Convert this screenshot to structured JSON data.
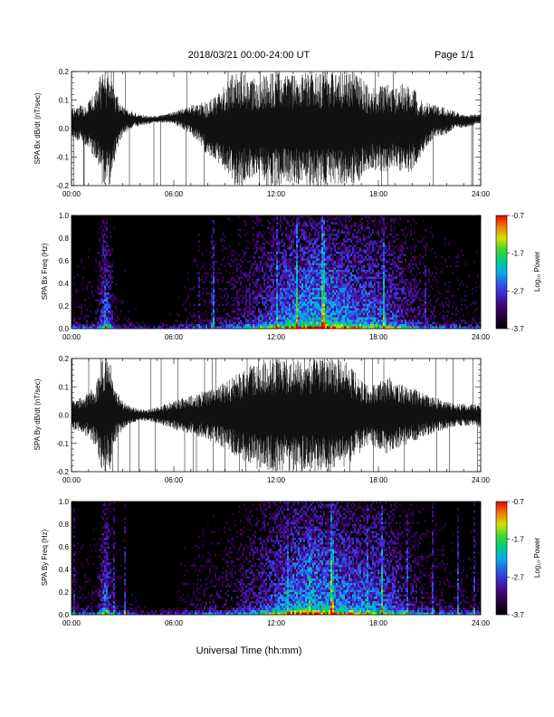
{
  "header": {
    "title": "2018/03/21   00:00-24:00 UT",
    "page": "Page 1/1"
  },
  "chart_data": [
    {
      "type": "line",
      "ylabel": "SPA Bx dB/dt (nT/sec)",
      "xlim": [
        0,
        24
      ],
      "ylim": [
        -0.2,
        0.2
      ],
      "xticks": [
        "00:00",
        "06:00",
        "12:00",
        "18:00",
        "24:00"
      ],
      "yticks": [
        "-0.2",
        "-0.1",
        "0.0",
        "0.1",
        "0.2"
      ],
      "envelope": {
        "x": [
          0,
          0.5,
          1,
          1.5,
          1.75,
          2,
          2.25,
          2.5,
          3,
          3.5,
          4,
          4.5,
          5,
          5.5,
          6,
          6.5,
          7,
          7.5,
          8,
          8.5,
          9,
          9.5,
          10,
          10.5,
          11,
          11.5,
          12,
          12.5,
          13,
          13.5,
          14,
          14.5,
          15,
          15.5,
          16,
          16.5,
          17,
          17.5,
          18,
          18.5,
          19,
          19.5,
          20,
          20.5,
          21,
          21.5,
          22,
          22.5,
          23,
          23.5,
          24
        ],
        "upper": [
          0.07,
          0.08,
          0.1,
          0.14,
          0.2,
          0.2,
          0.2,
          0.14,
          0.08,
          0.06,
          0.05,
          0.045,
          0.045,
          0.05,
          0.06,
          0.07,
          0.08,
          0.09,
          0.1,
          0.12,
          0.15,
          0.2,
          0.2,
          0.18,
          0.17,
          0.2,
          0.2,
          0.19,
          0.2,
          0.2,
          0.2,
          0.2,
          0.2,
          0.2,
          0.2,
          0.2,
          0.18,
          0.14,
          0.15,
          0.16,
          0.14,
          0.16,
          0.15,
          0.1,
          0.09,
          0.08,
          0.07,
          0.06,
          0.05,
          0.05,
          0.05
        ],
        "lower": [
          -0.03,
          -0.05,
          -0.08,
          -0.12,
          -0.2,
          -0.2,
          -0.2,
          -0.12,
          -0.02,
          0.0,
          0.01,
          0.015,
          0.02,
          0.02,
          0.015,
          0.0,
          -0.02,
          -0.05,
          -0.1,
          -0.12,
          -0.15,
          -0.2,
          -0.2,
          -0.18,
          -0.17,
          -0.2,
          -0.2,
          -0.19,
          -0.2,
          -0.2,
          -0.2,
          -0.2,
          -0.2,
          -0.2,
          -0.2,
          -0.2,
          -0.18,
          -0.14,
          -0.15,
          -0.16,
          -0.14,
          -0.16,
          -0.15,
          -0.1,
          -0.05,
          -0.03,
          -0.02,
          0.0,
          0.0,
          0.01,
          0.02
        ]
      }
    },
    {
      "type": "heatmap",
      "ylabel": "SPA Bx Freq (Hz)",
      "xlim": [
        0,
        24
      ],
      "ylim": [
        0,
        1.0
      ],
      "xticks": [
        "00:00",
        "06:00",
        "12:00",
        "18:00",
        "24:00"
      ],
      "yticks": [
        "0.0",
        "0.2",
        "0.4",
        "0.6",
        "0.8",
        "1.0"
      ],
      "colorbar": {
        "label": "Log₁₀ Power",
        "ticks": [
          "-0.7",
          "-1.7",
          "-2.7",
          "-3.7"
        ],
        "range": [
          -3.7,
          -0.7
        ]
      }
    },
    {
      "type": "line",
      "ylabel": "SPA By dB/dt (nT/sec)",
      "xlim": [
        0,
        24
      ],
      "ylim": [
        -0.2,
        0.2
      ],
      "xticks": [
        "00:00",
        "06:00",
        "12:00",
        "18:00",
        "24:00"
      ],
      "yticks": [
        "-0.2",
        "-0.1",
        "0.0",
        "0.1",
        "0.2"
      ],
      "envelope": {
        "x": [
          0,
          0.5,
          1,
          1.5,
          1.75,
          2,
          2.25,
          2.5,
          3,
          3.5,
          4,
          4.5,
          5,
          5.5,
          6,
          6.5,
          7,
          7.5,
          8,
          8.5,
          9,
          9.5,
          10,
          10.5,
          11,
          11.5,
          12,
          12.5,
          13,
          13.5,
          14,
          14.5,
          15,
          15.5,
          16,
          16.5,
          17,
          17.5,
          18,
          18.5,
          19,
          19.5,
          20,
          20.5,
          21,
          21.5,
          22,
          22.5,
          23,
          23.5,
          24
        ],
        "upper": [
          0.05,
          0.06,
          0.08,
          0.12,
          0.2,
          0.2,
          0.2,
          0.1,
          0.05,
          0.03,
          0.02,
          0.02,
          0.03,
          0.04,
          0.05,
          0.06,
          0.07,
          0.08,
          0.09,
          0.1,
          0.12,
          0.14,
          0.16,
          0.18,
          0.2,
          0.2,
          0.2,
          0.2,
          0.2,
          0.2,
          0.2,
          0.2,
          0.2,
          0.2,
          0.2,
          0.16,
          0.13,
          0.1,
          0.12,
          0.14,
          0.12,
          0.11,
          0.1,
          0.08,
          0.07,
          0.06,
          0.05,
          0.04,
          0.04,
          0.04,
          0.04
        ],
        "lower": [
          -0.05,
          -0.06,
          -0.08,
          -0.12,
          -0.2,
          -0.2,
          -0.2,
          -0.1,
          -0.05,
          -0.03,
          -0.02,
          -0.02,
          -0.03,
          -0.04,
          -0.05,
          -0.06,
          -0.07,
          -0.08,
          -0.09,
          -0.1,
          -0.12,
          -0.14,
          -0.16,
          -0.18,
          -0.2,
          -0.2,
          -0.2,
          -0.2,
          -0.2,
          -0.2,
          -0.2,
          -0.2,
          -0.2,
          -0.2,
          -0.2,
          -0.16,
          -0.13,
          -0.1,
          -0.12,
          -0.14,
          -0.12,
          -0.11,
          -0.1,
          -0.08,
          -0.07,
          -0.06,
          -0.05,
          -0.04,
          -0.04,
          -0.04,
          -0.04
        ]
      }
    },
    {
      "type": "heatmap",
      "ylabel": "SPA By Freq (Hz)",
      "xlim": [
        0,
        24
      ],
      "ylim": [
        0,
        1.0
      ],
      "xticks": [
        "00:00",
        "06:00",
        "12:00",
        "18:00",
        "24:00"
      ],
      "yticks": [
        "0.0",
        "0.2",
        "0.4",
        "0.6",
        "0.8",
        "1.0"
      ],
      "colorbar": {
        "label": "Log₁₀ Power",
        "ticks": [
          "-0.7",
          "-1.7",
          "-2.7",
          "-3.7"
        ],
        "range": [
          -3.7,
          -0.7
        ]
      }
    }
  ],
  "xlabel": "Universal Time (hh:mm)"
}
